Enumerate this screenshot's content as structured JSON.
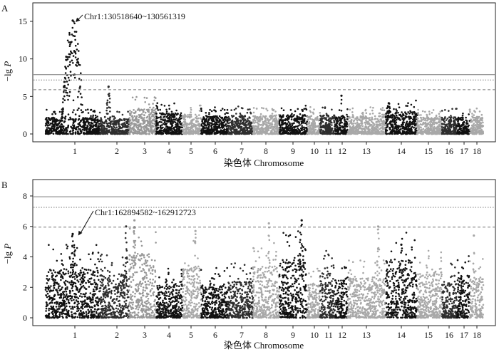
{
  "chart_data": [
    {
      "type": "scatter",
      "panel": "A",
      "title": "",
      "xlabel": "染色体  Chromosome",
      "ylabel": "−lg P",
      "ylim": [
        0,
        16
      ],
      "yticks": [
        0,
        5,
        10,
        15
      ],
      "grid": false,
      "chromosomes": [
        "1",
        "2",
        "3",
        "4",
        "5",
        "6",
        "7",
        "8",
        "9",
        "10",
        "11",
        "12",
        "13",
        "14",
        "15",
        "16",
        "17",
        "18"
      ],
      "chromosome_colors": [
        "#111111",
        "#2e2e2e",
        "#999999",
        "#111111",
        "#a8a8a8",
        "#111111",
        "#2e2e2e",
        "#a8a8a8",
        "#111111",
        "#a8a8a8",
        "#2e2e2e",
        "#111111",
        "#a8a8a8",
        "#111111",
        "#a8a8a8",
        "#2e2e2e",
        "#111111",
        "#a8a8a8"
      ],
      "baseline_max": [
        2.2,
        2.0,
        3.3,
        2.8,
        2.6,
        2.4,
        2.5,
        2.4,
        2.6,
        2.4,
        2.5,
        2.3,
        2.4,
        3.0,
        2.2,
        2.3,
        2.2,
        2.3
      ],
      "threshold_lines": [
        {
          "value": 7.9,
          "style": "solid"
        },
        {
          "value": 7.2,
          "style": "dotted"
        },
        {
          "value": 5.9,
          "style": "dashed"
        }
      ],
      "peaks": [
        {
          "chr": "1",
          "pos": 0.5,
          "max": 15.1,
          "width": 0.22
        },
        {
          "chr": "2",
          "pos": 0.3,
          "max": 6.3,
          "width": 0.1
        },
        {
          "chr": "12",
          "pos": 0.5,
          "max": 5.1,
          "width": 0.05
        },
        {
          "chr": "14",
          "pos": 0.1,
          "max": 4.1,
          "width": 0.1
        }
      ],
      "annotation": {
        "text": "Chr1:130518640~130561319",
        "chr": "1",
        "pos": 0.5,
        "y": 15.1
      }
    },
    {
      "type": "scatter",
      "panel": "B",
      "title": "",
      "xlabel": "染色体  Chromosome",
      "ylabel": "−lg P",
      "ylim": [
        0,
        8.6
      ],
      "yticks": [
        0,
        2,
        4,
        6,
        8
      ],
      "grid": false,
      "chromosomes": [
        "1",
        "2",
        "3",
        "4",
        "5",
        "6",
        "7",
        "8",
        "9",
        "10",
        "11",
        "12",
        "13",
        "14",
        "15",
        "16",
        "17",
        "18"
      ],
      "chromosome_colors": [
        "#111111",
        "#2e2e2e",
        "#999999",
        "#111111",
        "#a8a8a8",
        "#111111",
        "#2e2e2e",
        "#a8a8a8",
        "#111111",
        "#a8a8a8",
        "#2e2e2e",
        "#111111",
        "#a8a8a8",
        "#111111",
        "#a8a8a8",
        "#2e2e2e",
        "#111111",
        "#a8a8a8"
      ],
      "baseline_max": [
        3.2,
        2.8,
        4.2,
        2.2,
        3.4,
        2.2,
        2.4,
        3.4,
        3.8,
        2.3,
        3.0,
        2.5,
        2.6,
        3.8,
        3.0,
        2.4,
        2.8,
        2.6
      ],
      "threshold_lines": [
        {
          "value": 7.95,
          "style": "solid"
        },
        {
          "value": 7.25,
          "style": "dotted"
        },
        {
          "value": 5.95,
          "style": "dashed"
        }
      ],
      "peaks": [
        {
          "chr": "1",
          "pos": 0.5,
          "max": 5.5,
          "width": 0.08
        },
        {
          "chr": "2",
          "pos": 0.9,
          "max": 6.0,
          "width": 0.06
        },
        {
          "chr": "3",
          "pos": 0.2,
          "max": 6.4,
          "width": 0.08
        },
        {
          "chr": "5",
          "pos": 0.7,
          "max": 5.7,
          "width": 0.06
        },
        {
          "chr": "8",
          "pos": 0.6,
          "max": 6.2,
          "width": 0.05
        },
        {
          "chr": "9",
          "pos": 0.8,
          "max": 6.4,
          "width": 0.12
        },
        {
          "chr": "13",
          "pos": 0.8,
          "max": 6.0,
          "width": 0.06
        },
        {
          "chr": "14",
          "pos": 0.5,
          "max": 4.8,
          "width": 0.1
        },
        {
          "chr": "18",
          "pos": 0.3,
          "max": 5.4,
          "width": 0.08
        }
      ],
      "annotation": {
        "text": "Chr1:162894582~162912723",
        "chr": "1",
        "pos": 0.55,
        "y": 5.5
      }
    }
  ]
}
